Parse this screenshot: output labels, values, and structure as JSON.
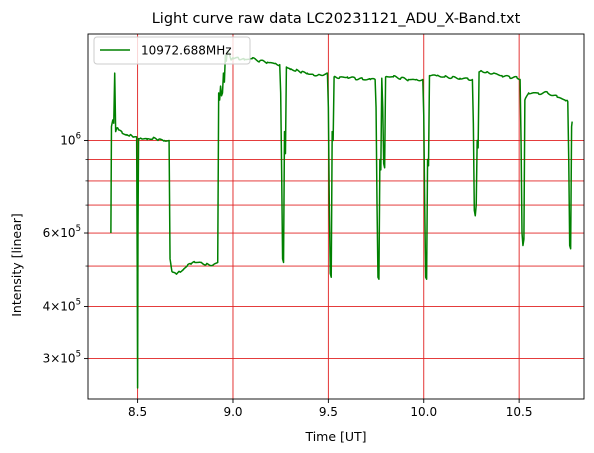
{
  "chart_data": {
    "type": "line",
    "title": "Light curve raw data LC20231121_ADU_X-Band.txt",
    "xlabel": "Time [UT]",
    "ylabel": "Intensity [linear]",
    "yscale": "log",
    "xlim": [
      8.24,
      10.84
    ],
    "ylim": [
      240000,
      1800000
    ],
    "x_ticks": [
      {
        "value": 8.5,
        "label": "8.5"
      },
      {
        "value": 9.0,
        "label": "9.0"
      },
      {
        "value": 9.5,
        "label": "9.5"
      },
      {
        "value": 10.0,
        "label": "10.0"
      },
      {
        "value": 10.5,
        "label": "10.5"
      }
    ],
    "y_ticks": [
      {
        "value": 300000,
        "mant": "3",
        "exp": "5"
      },
      {
        "value": 400000,
        "mant": "4",
        "exp": "5"
      },
      {
        "value": 600000,
        "mant": "6",
        "exp": "5"
      },
      {
        "value": 1000000,
        "mant": "10",
        "exp": "6"
      }
    ],
    "red_grid_x": [
      8.5,
      9.0,
      9.5,
      10.0,
      10.5
    ],
    "red_grid_y": [
      300000,
      400000,
      500000,
      600000,
      700000,
      800000,
      900000,
      1000000
    ],
    "legend": {
      "position": "upper left",
      "label": "10972.688MHz"
    },
    "series_color": "#008000",
    "grid_color": "#e02020",
    "series": [
      {
        "name": "10972.688MHz",
        "points": [
          [
            8.36,
            600000
          ],
          [
            8.363,
            1080000
          ],
          [
            8.37,
            1120000
          ],
          [
            8.375,
            1100000
          ],
          [
            8.38,
            1450000
          ],
          [
            8.385,
            1050000
          ],
          [
            8.39,
            1070000
          ],
          [
            8.4,
            1060000
          ],
          [
            8.42,
            1040000
          ],
          [
            8.44,
            1030000
          ],
          [
            8.46,
            1030000
          ],
          [
            8.48,
            1020000
          ],
          [
            8.495,
            1020000
          ],
          [
            8.498,
            500000
          ],
          [
            8.5,
            255000
          ],
          [
            8.502,
            600000
          ],
          [
            8.505,
            1010000
          ],
          [
            8.52,
            1010000
          ],
          [
            8.55,
            1005000
          ],
          [
            8.58,
            1010000
          ],
          [
            8.61,
            1005000
          ],
          [
            8.64,
            1000000
          ],
          [
            8.665,
            1000000
          ],
          [
            8.67,
            520000
          ],
          [
            8.68,
            485000
          ],
          [
            8.7,
            480000
          ],
          [
            8.72,
            485000
          ],
          [
            8.74,
            490000
          ],
          [
            8.76,
            500000
          ],
          [
            8.78,
            505000
          ],
          [
            8.8,
            510000
          ],
          [
            8.83,
            510000
          ],
          [
            8.86,
            505000
          ],
          [
            8.9,
            505000
          ],
          [
            8.92,
            510000
          ],
          [
            8.925,
            1300000
          ],
          [
            8.93,
            1250000
          ],
          [
            8.935,
            1350000
          ],
          [
            8.94,
            1280000
          ],
          [
            8.945,
            1300000
          ],
          [
            8.95,
            1450000
          ],
          [
            8.955,
            1380000
          ],
          [
            8.96,
            1600000
          ],
          [
            8.965,
            1550000
          ],
          [
            8.97,
            1640000
          ],
          [
            8.98,
            1620000
          ],
          [
            8.99,
            1560000
          ],
          [
            9.0,
            1580000
          ],
          [
            9.03,
            1570000
          ],
          [
            9.06,
            1560000
          ],
          [
            9.1,
            1570000
          ],
          [
            9.14,
            1550000
          ],
          [
            9.18,
            1540000
          ],
          [
            9.22,
            1530000
          ],
          [
            9.245,
            1520000
          ],
          [
            9.25,
            1300000
          ],
          [
            9.255,
            850000
          ],
          [
            9.26,
            520000
          ],
          [
            9.265,
            510000
          ],
          [
            9.27,
            1050000
          ],
          [
            9.275,
            930000
          ],
          [
            9.28,
            1500000
          ],
          [
            9.3,
            1480000
          ],
          [
            9.33,
            1470000
          ],
          [
            9.36,
            1460000
          ],
          [
            9.39,
            1450000
          ],
          [
            9.42,
            1440000
          ],
          [
            9.45,
            1440000
          ],
          [
            9.48,
            1440000
          ],
          [
            9.495,
            1450000
          ],
          [
            9.5,
            1200000
          ],
          [
            9.505,
            700000
          ],
          [
            9.51,
            480000
          ],
          [
            9.515,
            470000
          ],
          [
            9.52,
            1050000
          ],
          [
            9.525,
            1000000
          ],
          [
            9.53,
            1420000
          ],
          [
            9.56,
            1420000
          ],
          [
            9.6,
            1420000
          ],
          [
            9.64,
            1410000
          ],
          [
            9.68,
            1400000
          ],
          [
            9.72,
            1400000
          ],
          [
            9.745,
            1400000
          ],
          [
            9.75,
            1200000
          ],
          [
            9.755,
            700000
          ],
          [
            9.76,
            470000
          ],
          [
            9.765,
            465000
          ],
          [
            9.77,
            900000
          ],
          [
            9.775,
            850000
          ],
          [
            9.78,
            1410000
          ],
          [
            9.785,
            1200000
          ],
          [
            9.79,
            880000
          ],
          [
            9.795,
            860000
          ],
          [
            9.8,
            1420000
          ],
          [
            9.84,
            1420000
          ],
          [
            9.88,
            1410000
          ],
          [
            9.92,
            1400000
          ],
          [
            9.96,
            1400000
          ],
          [
            9.995,
            1400000
          ],
          [
            10.0,
            1150000
          ],
          [
            10.005,
            700000
          ],
          [
            10.01,
            470000
          ],
          [
            10.015,
            465000
          ],
          [
            10.02,
            900000
          ],
          [
            10.025,
            870000
          ],
          [
            10.03,
            1430000
          ],
          [
            10.07,
            1430000
          ],
          [
            10.11,
            1420000
          ],
          [
            10.15,
            1420000
          ],
          [
            10.19,
            1410000
          ],
          [
            10.23,
            1410000
          ],
          [
            10.255,
            1400000
          ],
          [
            10.26,
            1100000
          ],
          [
            10.265,
            680000
          ],
          [
            10.27,
            660000
          ],
          [
            10.275,
            700000
          ],
          [
            10.28,
            1000000
          ],
          [
            10.285,
            960000
          ],
          [
            10.29,
            1460000
          ],
          [
            10.3,
            1470000
          ],
          [
            10.33,
            1460000
          ],
          [
            10.37,
            1450000
          ],
          [
            10.41,
            1430000
          ],
          [
            10.45,
            1420000
          ],
          [
            10.49,
            1410000
          ],
          [
            10.505,
            1400000
          ],
          [
            10.51,
            1000000
          ],
          [
            10.515,
            600000
          ],
          [
            10.52,
            560000
          ],
          [
            10.525,
            580000
          ],
          [
            10.53,
            1250000
          ],
          [
            10.55,
            1300000
          ],
          [
            10.6,
            1300000
          ],
          [
            10.65,
            1300000
          ],
          [
            10.7,
            1270000
          ],
          [
            10.74,
            1250000
          ],
          [
            10.755,
            1240000
          ],
          [
            10.76,
            900000
          ],
          [
            10.765,
            560000
          ],
          [
            10.77,
            550000
          ],
          [
            10.775,
            1080000
          ],
          [
            10.778,
            1110000
          ]
        ]
      }
    ]
  }
}
